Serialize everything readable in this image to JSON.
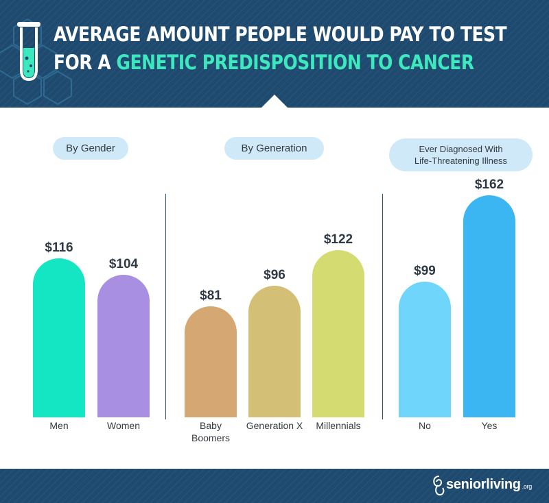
{
  "header": {
    "title_line1": "AVERAGE AMOUNT PEOPLE WOULD PAY TO TEST",
    "title_line2_prefix": "FOR A ",
    "title_line2_highlight": "GENETIC PREDISPOSITION TO CANCER",
    "icon": "test-tube-icon",
    "background_color": "#1d4a6e",
    "highlight_color": "#3ee8bf"
  },
  "chart_data": {
    "type": "bar",
    "ylim": [
      0,
      180
    ],
    "groups": [
      {
        "label": "By Gender",
        "categories": [
          "Men",
          "Women"
        ],
        "values": [
          116,
          104
        ],
        "value_labels": [
          "$116",
          "$104"
        ],
        "colors": [
          "#14e5c3",
          "#a98fe1"
        ]
      },
      {
        "label": "By Generation",
        "categories": [
          "Baby Boomers",
          "Generation X",
          "Millennials"
        ],
        "values": [
          81,
          96,
          122
        ],
        "value_labels": [
          "$81",
          "$96",
          "$122"
        ],
        "colors": [
          "#d5a873",
          "#d3c076",
          "#d3db71"
        ]
      },
      {
        "label_line1": "Ever Diagnosed With",
        "label_line2": "Life-Threatening Illness",
        "categories": [
          "No",
          "Yes"
        ],
        "values": [
          99,
          162
        ],
        "value_labels": [
          "$99",
          "$162"
        ],
        "colors": [
          "#6fd5fb",
          "#3bb6f2"
        ]
      }
    ]
  },
  "footer": {
    "brand": "seniorliving",
    "brand_suffix": ".org",
    "icon": "senior-living-logo-icon"
  }
}
